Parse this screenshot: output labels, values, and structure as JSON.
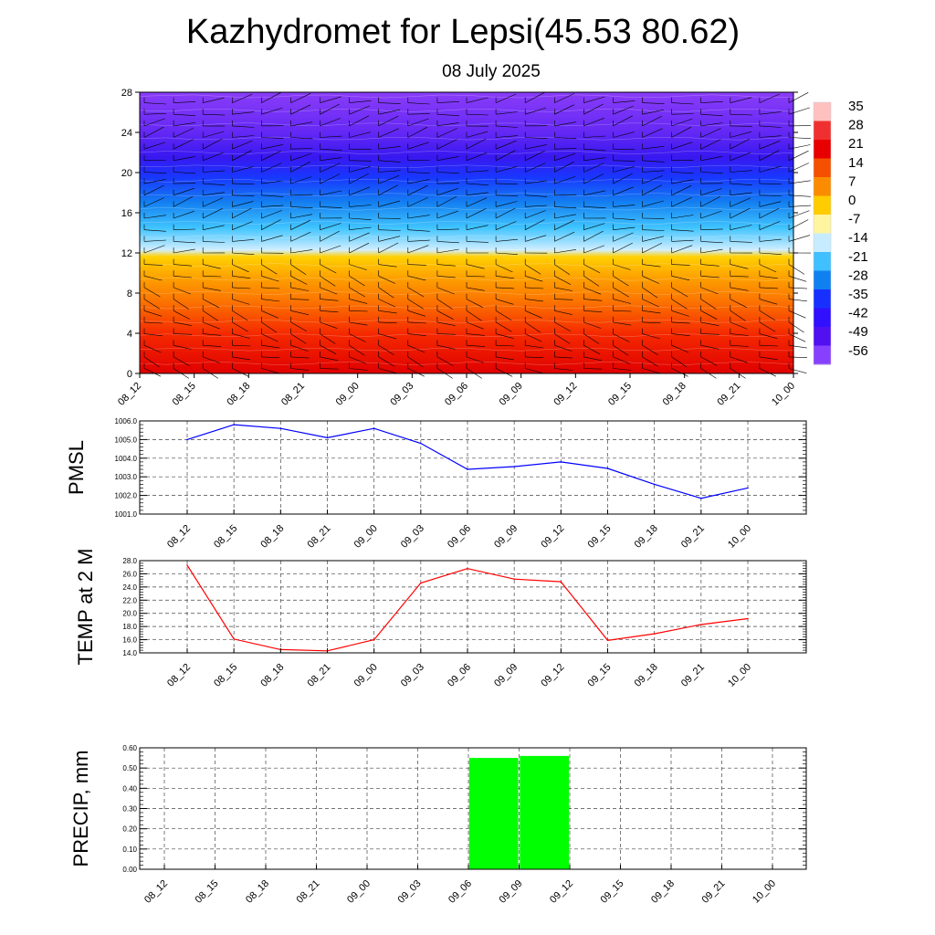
{
  "header": {
    "title": "Kazhydromet for Lepsi(45.53 80.62)",
    "subtitle": "08 July 2025"
  },
  "time_labels": [
    "08_12",
    "08_15",
    "08_18",
    "08_21",
    "09_00",
    "09_03",
    "09_06",
    "09_09",
    "09_12",
    "09_15",
    "09_18",
    "09_21",
    "10_00"
  ],
  "chart_data": [
    {
      "type": "heatmap",
      "id": "temperature-profile",
      "title": "",
      "xlabel": "",
      "ylabel": "",
      "x": [
        "08_12",
        "08_15",
        "08_18",
        "08_21",
        "09_00",
        "09_03",
        "09_06",
        "09_09",
        "09_12",
        "09_15",
        "09_18",
        "09_21",
        "10_00"
      ],
      "y_ticks": [
        0,
        4,
        8,
        12,
        16,
        20,
        24,
        28
      ],
      "ylim": [
        0,
        28
      ],
      "colorbar": {
        "labels": [
          "35",
          "28",
          "21",
          "14",
          "7",
          "0",
          "-7",
          "-14",
          "-21",
          "-28",
          "-35",
          "-42",
          "-49",
          "-56"
        ],
        "colors": [
          "#ffc0c0",
          "#f03030",
          "#e80000",
          "#f45000",
          "#fb8c00",
          "#ffcc00",
          "#fff5a0",
          "#c8ecff",
          "#40c0ff",
          "#1080f0",
          "#1830ff",
          "#3010ff",
          "#5010f0",
          "#8840ff"
        ]
      },
      "field_bands": [
        {
          "level": 0,
          "color": "#e00000"
        },
        {
          "level": 4,
          "color": "#f52a00"
        },
        {
          "level": 7,
          "color": "#fb7000"
        },
        {
          "level": 9.5,
          "color": "#fda000"
        },
        {
          "level": 11.6,
          "color": "#ffd000"
        },
        {
          "level": 12.3,
          "color": "#d0eeff"
        },
        {
          "level": 14.5,
          "color": "#40c4ff"
        },
        {
          "level": 17,
          "color": "#1480f0"
        },
        {
          "level": 19.5,
          "color": "#1838ff"
        },
        {
          "level": 21.5,
          "color": "#3818f0"
        },
        {
          "level": 24,
          "color": "#6428f4"
        },
        {
          "level": 28,
          "color": "#8a3cf8"
        }
      ],
      "grid": false
    },
    {
      "type": "line",
      "id": "pmsl",
      "title": "",
      "xlabel": "",
      "ylabel": "PMSL",
      "x": [
        "08_12",
        "08_15",
        "08_18",
        "08_21",
        "09_00",
        "09_03",
        "09_06",
        "09_09",
        "09_12",
        "09_15",
        "09_18",
        "09_21",
        "10_00"
      ],
      "y_ticks": [
        "1001.0",
        "1002.0",
        "1003.0",
        "1004.0",
        "1005.0",
        "1006.0"
      ],
      "ylim": [
        1001,
        1006
      ],
      "series": [
        {
          "values": [
            1005.0,
            1005.8,
            1005.6,
            1005.1,
            1005.6,
            1004.8,
            1003.4,
            1003.55,
            1003.8,
            1003.45,
            1002.6,
            1001.85,
            1002.4
          ],
          "color": "#0000ff"
        }
      ],
      "grid": true
    },
    {
      "type": "line",
      "id": "temp2m",
      "title": "",
      "xlabel": "",
      "ylabel": "TEMP at 2 M",
      "x": [
        "08_12",
        "08_15",
        "08_18",
        "08_21",
        "09_00",
        "09_03",
        "09_06",
        "09_09",
        "09_12",
        "09_15",
        "09_18",
        "09_21",
        "10_00"
      ],
      "y_ticks": [
        "14.0",
        "16.0",
        "18.0",
        "20.0",
        "22.0",
        "24.0",
        "26.0",
        "28.0"
      ],
      "ylim": [
        14,
        28
      ],
      "series": [
        {
          "values": [
            27.3,
            16.1,
            14.5,
            14.3,
            16.0,
            24.6,
            26.8,
            25.2,
            24.8,
            15.9,
            16.9,
            18.3,
            19.2
          ],
          "color": "#ff0000"
        }
      ],
      "grid": true
    },
    {
      "type": "bar",
      "id": "precip",
      "title": "",
      "xlabel": "",
      "ylabel": "PRECIP, mm",
      "categories": [
        "08_12",
        "08_15",
        "08_18",
        "08_21",
        "09_00",
        "09_03",
        "09_06",
        "09_09",
        "09_12",
        "09_15",
        "09_18",
        "09_21",
        "10_00"
      ],
      "values": [
        0,
        0,
        0,
        0,
        0,
        0,
        0,
        0.55,
        0.56,
        0,
        0,
        0,
        0
      ],
      "y_ticks": [
        "0.00",
        "0.10",
        "0.20",
        "0.30",
        "0.40",
        "0.50",
        "0.60"
      ],
      "ylim": [
        0,
        0.6
      ],
      "bar_color": "#00ff00",
      "grid": true
    }
  ]
}
